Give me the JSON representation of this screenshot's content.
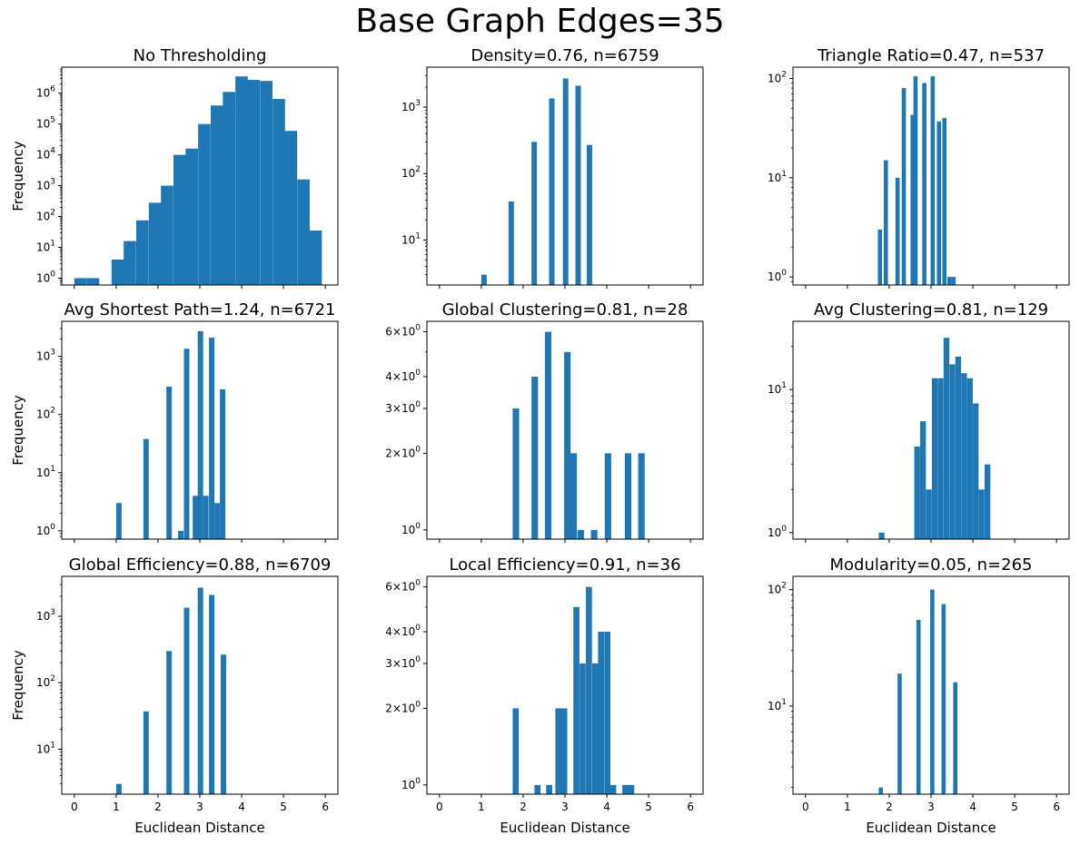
{
  "figure": {
    "title": "Base Graph Edges=35",
    "bar_color": "#1f77b4"
  },
  "chart_data": [
    {
      "type": "bar",
      "title": "No Thresholding",
      "xlabel": "",
      "ylabel": "Frequency",
      "yscale": "log",
      "xlim": [
        -0.3,
        6.3
      ],
      "ylim": [
        0.6,
        7000000
      ],
      "x_ticks": [
        0,
        1,
        2,
        3,
        4,
        5,
        6
      ],
      "y_ticks": [
        {
          "value": 1,
          "label": "10⁰"
        },
        {
          "value": 10,
          "label": "10¹"
        },
        {
          "value": 100,
          "label": "10²"
        },
        {
          "value": 1000,
          "label": "10³"
        },
        {
          "value": 10000,
          "label": "10⁴"
        },
        {
          "value": 100000,
          "label": "10⁵"
        },
        {
          "value": 1000000,
          "label": "10⁶"
        }
      ],
      "bin_width": 0.296,
      "bars": [
        {
          "x": 0.0,
          "value": 1
        },
        {
          "x": 0.3,
          "value": 1
        },
        {
          "x": 0.89,
          "value": 4
        },
        {
          "x": 1.18,
          "value": 16
        },
        {
          "x": 1.48,
          "value": 75
        },
        {
          "x": 1.78,
          "value": 280
        },
        {
          "x": 2.07,
          "value": 1000
        },
        {
          "x": 2.37,
          "value": 10000
        },
        {
          "x": 2.66,
          "value": 16000
        },
        {
          "x": 2.96,
          "value": 100000
        },
        {
          "x": 3.26,
          "value": 400000
        },
        {
          "x": 3.55,
          "value": 1100000
        },
        {
          "x": 3.85,
          "value": 3500000
        },
        {
          "x": 4.14,
          "value": 2700000
        },
        {
          "x": 4.44,
          "value": 2500000
        },
        {
          "x": 4.74,
          "value": 650000
        },
        {
          "x": 5.03,
          "value": 60000
        },
        {
          "x": 5.33,
          "value": 1600
        },
        {
          "x": 5.62,
          "value": 35
        }
      ],
      "show_xticklabels": false
    },
    {
      "type": "bar",
      "title": "Density=0.76, n=6759",
      "xlabel": "",
      "ylabel": "",
      "yscale": "log",
      "xlim": [
        -0.3,
        6.3
      ],
      "ylim": [
        2.1,
        4000
      ],
      "x_ticks": [
        0,
        1,
        2,
        3,
        4,
        5,
        6
      ],
      "y_ticks": [
        {
          "value": 10,
          "label": "10¹"
        },
        {
          "value": 100,
          "label": "10²"
        },
        {
          "value": 1000,
          "label": "10³"
        }
      ],
      "bin_width": 0.13,
      "bars": [
        {
          "x": 1.0,
          "value": 3
        },
        {
          "x": 1.65,
          "value": 38
        },
        {
          "x": 2.2,
          "value": 300
        },
        {
          "x": 2.62,
          "value": 1350
        },
        {
          "x": 2.95,
          "value": 2700
        },
        {
          "x": 3.25,
          "value": 2100
        },
        {
          "x": 3.52,
          "value": 270
        }
      ],
      "show_xticklabels": false
    },
    {
      "type": "bar",
      "title": "Triangle Ratio=0.47, n=537",
      "xlabel": "",
      "ylabel": "",
      "yscale": "log",
      "xlim": [
        -0.3,
        6.3
      ],
      "ylim": [
        0.83,
        130
      ],
      "x_ticks": [
        0,
        1,
        2,
        3,
        4,
        5,
        6
      ],
      "y_ticks": [
        {
          "value": 1,
          "label": "10⁰"
        },
        {
          "value": 10,
          "label": "10¹"
        },
        {
          "value": 100,
          "label": "10²"
        }
      ],
      "bin_width": 0.1,
      "bars": [
        {
          "x": 1.73,
          "value": 3
        },
        {
          "x": 1.87,
          "value": 15
        },
        {
          "x": 2.15,
          "value": 10
        },
        {
          "x": 2.3,
          "value": 80
        },
        {
          "x": 2.51,
          "value": 43
        },
        {
          "x": 2.58,
          "value": 105
        },
        {
          "x": 2.79,
          "value": 90
        },
        {
          "x": 2.99,
          "value": 105
        },
        {
          "x": 3.14,
          "value": 37
        },
        {
          "x": 3.27,
          "value": 40
        },
        {
          "x": 3.39,
          "value": 1
        },
        {
          "x": 3.49,
          "value": 1
        }
      ],
      "show_xticklabels": false
    },
    {
      "type": "bar",
      "title": "Avg Shortest Path=1.24, n=6721",
      "xlabel": "",
      "ylabel": "Frequency",
      "yscale": "log",
      "xlim": [
        -0.3,
        6.3
      ],
      "ylim": [
        0.72,
        4000
      ],
      "x_ticks": [
        0,
        1,
        2,
        3,
        4,
        5,
        6
      ],
      "y_ticks": [
        {
          "value": 1,
          "label": "10⁰"
        },
        {
          "value": 10,
          "label": "10¹"
        },
        {
          "value": 100,
          "label": "10²"
        },
        {
          "value": 1000,
          "label": "10³"
        }
      ],
      "bin_width": 0.13,
      "bars": [
        {
          "x": 1.0,
          "value": 3
        },
        {
          "x": 1.65,
          "value": 38
        },
        {
          "x": 2.2,
          "value": 300
        },
        {
          "x": 2.48,
          "value": 1
        },
        {
          "x": 2.62,
          "value": 1350
        },
        {
          "x": 2.83,
          "value": 4
        },
        {
          "x": 2.95,
          "value": 2700
        },
        {
          "x": 3.08,
          "value": 4
        },
        {
          "x": 3.22,
          "value": 2100
        },
        {
          "x": 3.35,
          "value": 3
        },
        {
          "x": 3.48,
          "value": 270
        }
      ],
      "show_xticklabels": false
    },
    {
      "type": "bar",
      "title": "Global Clustering=0.81, n=28",
      "xlabel": "",
      "ylabel": "",
      "yscale": "log",
      "xlim": [
        -0.3,
        6.3
      ],
      "ylim": [
        0.92,
        6.6
      ],
      "x_ticks": [
        0,
        1,
        2,
        3,
        4,
        5,
        6
      ],
      "y_ticks": [
        {
          "value": 1,
          "label": "10⁰"
        },
        {
          "value": 2,
          "label": "2×10⁰"
        },
        {
          "value": 3,
          "label": "3×10⁰"
        },
        {
          "value": 4,
          "label": "4×10⁰"
        },
        {
          "value": 6,
          "label": "6×10⁰"
        }
      ],
      "bin_width": 0.155,
      "bars": [
        {
          "x": 1.75,
          "value": 3
        },
        {
          "x": 2.2,
          "value": 4
        },
        {
          "x": 2.52,
          "value": 6
        },
        {
          "x": 2.98,
          "value": 5
        },
        {
          "x": 3.13,
          "value": 2
        },
        {
          "x": 3.3,
          "value": 1
        },
        {
          "x": 3.62,
          "value": 1
        },
        {
          "x": 3.95,
          "value": 2
        },
        {
          "x": 4.43,
          "value": 2
        },
        {
          "x": 4.75,
          "value": 2
        }
      ],
      "show_xticklabels": false
    },
    {
      "type": "bar",
      "title": "Avg Clustering=0.81, n=129",
      "xlabel": "",
      "ylabel": "",
      "yscale": "log",
      "xlim": [
        -0.3,
        6.3
      ],
      "ylim": [
        0.9,
        30
      ],
      "x_ticks": [
        0,
        1,
        2,
        3,
        4,
        5,
        6
      ],
      "y_ticks": [
        {
          "value": 1,
          "label": "10⁰"
        },
        {
          "value": 10,
          "label": "10¹"
        }
      ],
      "bin_width": 0.137,
      "bars": [
        {
          "x": 1.75,
          "value": 1
        },
        {
          "x": 2.6,
          "value": 4
        },
        {
          "x": 2.74,
          "value": 6
        },
        {
          "x": 2.88,
          "value": 2
        },
        {
          "x": 3.02,
          "value": 12
        },
        {
          "x": 3.16,
          "value": 12
        },
        {
          "x": 3.3,
          "value": 23
        },
        {
          "x": 3.44,
          "value": 15
        },
        {
          "x": 3.58,
          "value": 17
        },
        {
          "x": 3.72,
          "value": 13
        },
        {
          "x": 3.86,
          "value": 12
        },
        {
          "x": 4.0,
          "value": 8
        },
        {
          "x": 4.14,
          "value": 2
        },
        {
          "x": 4.28,
          "value": 3
        }
      ],
      "show_xticklabels": false
    },
    {
      "type": "bar",
      "title": "Global Efficiency=0.88, n=6709",
      "xlabel": "Euclidean Distance",
      "ylabel": "Frequency",
      "yscale": "log",
      "xlim": [
        -0.3,
        6.3
      ],
      "ylim": [
        2.1,
        4000
      ],
      "x_ticks": [
        0,
        1,
        2,
        3,
        4,
        5,
        6
      ],
      "y_ticks": [
        {
          "value": 10,
          "label": "10¹"
        },
        {
          "value": 100,
          "label": "10²"
        },
        {
          "value": 1000,
          "label": "10³"
        }
      ],
      "bin_width": 0.13,
      "bars": [
        {
          "x": 1.0,
          "value": 3
        },
        {
          "x": 1.65,
          "value": 37
        },
        {
          "x": 2.2,
          "value": 300
        },
        {
          "x": 2.62,
          "value": 1350
        },
        {
          "x": 2.95,
          "value": 2700
        },
        {
          "x": 3.22,
          "value": 2100
        },
        {
          "x": 3.5,
          "value": 265
        }
      ],
      "show_xticklabels": true
    },
    {
      "type": "bar",
      "title": "Local Efficiency=0.91, n=36",
      "xlabel": "Euclidean Distance",
      "ylabel": "",
      "yscale": "log",
      "xlim": [
        -0.3,
        6.3
      ],
      "ylim": [
        0.92,
        6.6
      ],
      "x_ticks": [
        0,
        1,
        2,
        3,
        4,
        5,
        6
      ],
      "y_ticks": [
        {
          "value": 1,
          "label": "10⁰"
        },
        {
          "value": 2,
          "label": "2×10⁰"
        },
        {
          "value": 3,
          "label": "3×10⁰"
        },
        {
          "value": 4,
          "label": "4×10⁰"
        },
        {
          "value": 6,
          "label": "6×10⁰"
        }
      ],
      "bin_width": 0.145,
      "bars": [
        {
          "x": 1.75,
          "value": 2
        },
        {
          "x": 2.27,
          "value": 1
        },
        {
          "x": 2.55,
          "value": 1
        },
        {
          "x": 2.77,
          "value": 2
        },
        {
          "x": 2.91,
          "value": 2
        },
        {
          "x": 3.2,
          "value": 5
        },
        {
          "x": 3.35,
          "value": 3
        },
        {
          "x": 3.5,
          "value": 6
        },
        {
          "x": 3.65,
          "value": 3
        },
        {
          "x": 3.79,
          "value": 4
        },
        {
          "x": 3.94,
          "value": 4
        },
        {
          "x": 4.08,
          "value": 1
        },
        {
          "x": 4.37,
          "value": 1
        },
        {
          "x": 4.51,
          "value": 1
        }
      ],
      "show_xticklabels": true
    },
    {
      "type": "bar",
      "title": "Modularity=0.05, n=265",
      "xlabel": "Euclidean Distance",
      "ylabel": "",
      "yscale": "log",
      "xlim": [
        -0.3,
        6.3
      ],
      "ylim": [
        1.75,
        130
      ],
      "x_ticks": [
        0,
        1,
        2,
        3,
        4,
        5,
        6
      ],
      "y_ticks": [
        {
          "value": 10,
          "label": "10¹"
        },
        {
          "value": 100,
          "label": "10²"
        }
      ],
      "bin_width": 0.1,
      "bars": [
        {
          "x": 1.75,
          "value": 2
        },
        {
          "x": 2.2,
          "value": 19
        },
        {
          "x": 2.65,
          "value": 55
        },
        {
          "x": 2.98,
          "value": 100
        },
        {
          "x": 3.25,
          "value": 75
        },
        {
          "x": 3.53,
          "value": 16
        }
      ],
      "show_xticklabels": true
    }
  ]
}
